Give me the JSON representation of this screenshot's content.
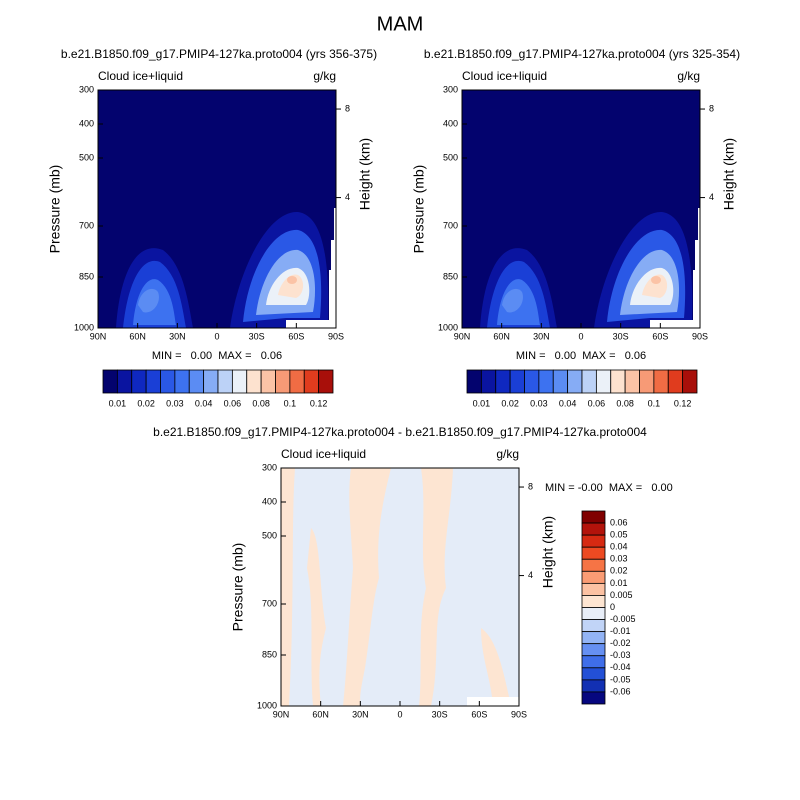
{
  "title": "MAM",
  "chart_data": [
    {
      "type": "contour",
      "subtitle": "b.e21.B1850.f09_g17.PMIP4-127ka.proto004 (yrs 356-375)",
      "left_label": "Cloud ice+liquid",
      "right_label": "g/kg",
      "ylabel": "Pressure (mb)",
      "y2label": "Height (km)",
      "stats": "MIN =   0.00  MAX =   0.06",
      "xlim": [
        90,
        -90
      ],
      "xticks": [
        {
          "value": 90,
          "label": "90N"
        },
        {
          "value": 60,
          "label": "60N"
        },
        {
          "value": 30,
          "label": "30N"
        },
        0,
        {
          "value": -30,
          "label": "30S"
        },
        {
          "value": -60,
          "label": "60S"
        },
        {
          "value": -90,
          "label": "90S"
        }
      ],
      "ylim": [
        1000,
        300
      ],
      "yticks": [
        300,
        400,
        500,
        700,
        850,
        1000
      ],
      "y2ticks": [
        8,
        4
      ],
      "colorbar": {
        "colors": [
          "#03036e",
          "#0a14a0",
          "#0f28c0",
          "#1a3fd6",
          "#2a58e6",
          "#3d72f0",
          "#5b8cf3",
          "#86acf5",
          "#bcd2f7",
          "#ebf1f8",
          "#fde2cf",
          "#fbc3a6",
          "#f79a76",
          "#f06c44",
          "#e03c1e",
          "#a80f0a"
        ],
        "labels": [
          0.01,
          0.02,
          0.03,
          0.04,
          0.06,
          0.08,
          0.1,
          0.12
        ]
      }
    },
    {
      "type": "contour",
      "subtitle": "b.e21.B1850.f09_g17.PMIP4-127ka.proto004 (yrs 325-354)",
      "left_label": "Cloud ice+liquid",
      "right_label": "g/kg",
      "ylabel": "Pressure (mb)",
      "y2label": "Height (km)",
      "stats": "MIN =   0.00  MAX =   0.06",
      "xlim": [
        90,
        -90
      ],
      "xticks": [
        {
          "value": 90,
          "label": "90N"
        },
        {
          "value": 60,
          "label": "60N"
        },
        {
          "value": 30,
          "label": "30N"
        },
        0,
        {
          "value": -30,
          "label": "30S"
        },
        {
          "value": -60,
          "label": "60S"
        },
        {
          "value": -90,
          "label": "90S"
        }
      ],
      "ylim": [
        1000,
        300
      ],
      "yticks": [
        300,
        400,
        500,
        700,
        850,
        1000
      ],
      "y2ticks": [
        8,
        4
      ],
      "colorbar": {
        "colors": [
          "#03036e",
          "#0a14a0",
          "#0f28c0",
          "#1a3fd6",
          "#2a58e6",
          "#3d72f0",
          "#5b8cf3",
          "#86acf5",
          "#bcd2f7",
          "#ebf1f8",
          "#fde2cf",
          "#fbc3a6",
          "#f79a76",
          "#f06c44",
          "#e03c1e",
          "#a80f0a"
        ],
        "labels": [
          0.01,
          0.02,
          0.03,
          0.04,
          0.06,
          0.08,
          0.1,
          0.12
        ]
      }
    },
    {
      "type": "contour",
      "subtitle": "b.e21.B1850.f09_g17.PMIP4-127ka.proto004 - b.e21.B1850.f09_g17.PMIP4-127ka.proto004",
      "left_label": "Cloud ice+liquid",
      "right_label": "g/kg",
      "ylabel": "Pressure (mb)",
      "y2label": "Height (km)",
      "stats": "MIN = -0.00  MAX =   0.00",
      "xlim": [
        90,
        -90
      ],
      "xticks": [
        {
          "value": 90,
          "label": "90N"
        },
        {
          "value": 60,
          "label": "60N"
        },
        {
          "value": 30,
          "label": "30N"
        },
        0,
        {
          "value": -30,
          "label": "30S"
        },
        {
          "value": -60,
          "label": "60S"
        },
        {
          "value": -90,
          "label": "90S"
        }
      ],
      "ylim": [
        1000,
        300
      ],
      "yticks": [
        300,
        400,
        500,
        700,
        850,
        1000
      ],
      "y2ticks": [
        8,
        4
      ],
      "colorbar": {
        "colors": [
          "#800000",
          "#b3130b",
          "#d62a12",
          "#ed4a22",
          "#f67445",
          "#fa9c74",
          "#fcc2a3",
          "#fde5d2",
          "#e8eef8",
          "#c1d4f7",
          "#93b4f5",
          "#6690f2",
          "#3f6ee9",
          "#2350d6",
          "#1230b3",
          "#06077f"
        ],
        "labels": [
          0.06,
          0.05,
          0.04,
          0.03,
          0.02,
          0.01,
          0.005,
          0,
          -0.005,
          -0.01,
          -0.02,
          -0.03,
          -0.04,
          -0.05,
          -0.06
        ]
      }
    }
  ]
}
